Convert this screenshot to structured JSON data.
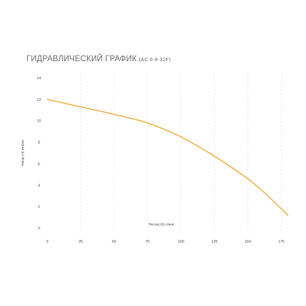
{
  "chart_data": {
    "type": "line",
    "title": "ГИДРАВЛИЧЕСКИЙ ГРАФИК",
    "subtitle": "(AC 6-8-32F)",
    "xlabel": "Расход (Q) л/мин",
    "ylabel": "Напор (H) метров",
    "xlim": [
      0,
      180
    ],
    "ylim": [
      0,
      14
    ],
    "x_ticks": [
      0,
      25,
      50,
      75,
      100,
      125,
      150,
      175
    ],
    "y_ticks": [
      0,
      2,
      4,
      6,
      8,
      10,
      12,
      14
    ],
    "grid": "vertical-dashed",
    "line_color": "#f0a830",
    "series": [
      {
        "x": [
          0,
          25,
          50,
          75,
          100,
          125,
          150,
          165,
          180
        ],
        "y": [
          12.0,
          11.3,
          10.6,
          9.8,
          8.5,
          6.7,
          4.6,
          3.0,
          1.2
        ]
      }
    ]
  }
}
